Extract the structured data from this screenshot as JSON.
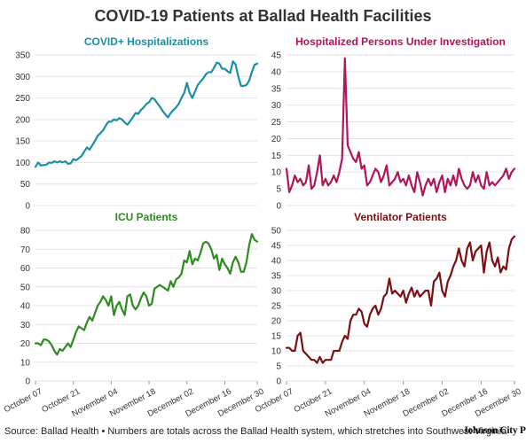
{
  "title": "COVID-19 Patients at Ballad Health Facilities",
  "footer": {
    "source": "Source: Ballad Health • Numbers are totals across the Ballad Health system, which stretches into Southwest Virginia",
    "brand": "Johnson City Press"
  },
  "chart_data": [
    {
      "type": "line",
      "title": "COVID+ Hospitalizations",
      "color": "#1a8fa6",
      "ylim": [
        0,
        350
      ],
      "yticks": [
        0,
        50,
        100,
        150,
        200,
        250,
        300,
        350
      ],
      "xtick_labels": [],
      "values": [
        90,
        100,
        93,
        94,
        95,
        100,
        99,
        103,
        100,
        103,
        100,
        103,
        97,
        98,
        108,
        105,
        110,
        115,
        125,
        135,
        130,
        140,
        150,
        162,
        168,
        175,
        186,
        195,
        195,
        200,
        198,
        203,
        200,
        193,
        188,
        196,
        205,
        215,
        213,
        222,
        228,
        236,
        240,
        250,
        247,
        238,
        230,
        220,
        212,
        205,
        215,
        222,
        228,
        237,
        250,
        262,
        285,
        262,
        250,
        265,
        280,
        288,
        295,
        305,
        310,
        310,
        320,
        332,
        330,
        318,
        318,
        312,
        308,
        335,
        328,
        300,
        278,
        278,
        280,
        290,
        310,
        327,
        330
      ]
    },
    {
      "type": "line",
      "title": "Hospitalized Persons Under Investigation",
      "color": "#b3145a",
      "ylim": [
        0,
        45
      ],
      "yticks": [
        0,
        5,
        10,
        15,
        20,
        25,
        30,
        35,
        40,
        45
      ],
      "xtick_labels": [],
      "values": [
        11,
        4,
        6,
        9,
        7,
        8,
        6,
        7,
        12,
        5,
        6,
        10,
        15,
        6,
        8,
        6,
        7,
        9,
        7,
        10,
        14,
        44,
        18,
        16,
        14,
        13,
        16,
        11,
        12,
        6,
        7,
        9,
        11,
        10,
        7,
        9,
        12,
        6,
        7,
        8,
        10,
        7,
        8,
        6,
        9,
        6,
        4,
        10,
        7,
        3,
        6,
        8,
        6,
        8,
        4,
        7,
        9,
        4,
        8,
        6,
        9,
        6,
        11,
        8,
        6,
        5,
        6,
        10,
        7,
        9,
        6,
        5,
        10,
        6,
        7,
        6,
        7,
        8,
        9,
        11,
        8,
        10,
        11
      ]
    },
    {
      "type": "line",
      "title": "ICU Patients",
      "color": "#2e8b1f",
      "ylim": [
        0,
        80
      ],
      "yticks": [
        0,
        10,
        20,
        30,
        40,
        50,
        60,
        70,
        80
      ],
      "xtick_labels": [
        "October 07",
        "October 21",
        "November 04",
        "November 18",
        "December 02",
        "December 16",
        "December 30"
      ],
      "values": [
        20,
        20,
        19,
        22,
        22,
        21,
        19,
        16,
        14,
        17,
        16,
        18,
        20,
        18,
        22,
        26,
        29,
        28,
        27,
        31,
        34,
        32,
        36,
        40,
        42,
        45,
        43,
        40,
        45,
        35,
        40,
        42,
        38,
        35,
        45,
        46,
        40,
        38,
        40,
        44,
        47,
        45,
        40,
        41,
        49,
        50,
        51,
        50,
        49,
        48,
        53,
        50,
        54,
        55,
        57,
        64,
        63,
        69,
        62,
        65,
        64,
        68,
        73,
        74,
        73,
        70,
        65,
        67,
        59,
        65,
        62,
        60,
        57,
        63,
        66,
        63,
        58,
        58,
        63,
        72,
        78,
        75,
        74
      ]
    },
    {
      "type": "line",
      "title": "Ventilator Patients",
      "color": "#7a1014",
      "ylim": [
        0,
        50
      ],
      "yticks": [
        0,
        5,
        10,
        15,
        20,
        25,
        30,
        35,
        40,
        45,
        50
      ],
      "xtick_labels": [
        "October 07",
        "October 21",
        "November 04",
        "November 18",
        "December 02",
        "December 16",
        "December 30"
      ],
      "values": [
        11,
        11,
        10,
        10,
        15,
        16,
        10,
        9,
        8,
        7,
        7,
        6,
        8,
        6,
        7,
        7,
        7,
        10,
        10,
        10,
        13,
        15,
        14,
        20,
        22,
        22,
        24,
        23,
        19,
        18,
        22,
        24,
        25,
        22,
        24,
        28,
        29,
        34,
        29,
        30,
        29,
        28,
        30,
        26,
        29,
        31,
        28,
        30,
        28,
        29,
        30,
        30,
        25,
        33,
        34,
        36,
        30,
        28,
        33,
        35,
        38,
        40,
        44,
        40,
        38,
        44,
        46,
        40,
        43,
        44,
        45,
        36,
        43,
        46,
        40,
        38,
        41,
        36,
        38,
        37,
        44,
        47,
        48
      ]
    }
  ]
}
